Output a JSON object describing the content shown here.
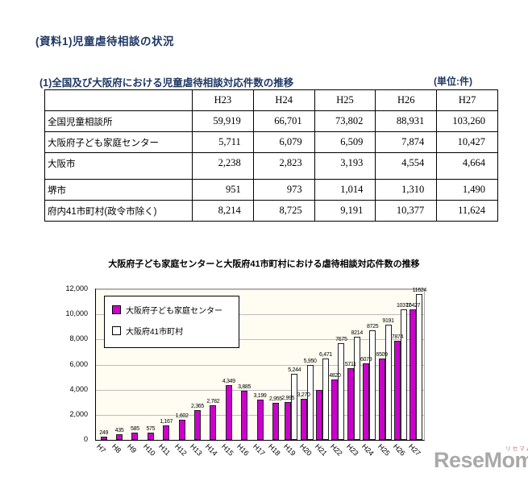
{
  "page": {
    "heading": "(資料1)児童虐待相談の状況",
    "subtitle": "(1)全国及び大阪府における児童虐待相談対応件数の推移",
    "unit_note": "(単位:件)"
  },
  "table": {
    "corner": "",
    "columns": [
      "H23",
      "H24",
      "H25",
      "H26",
      "H27"
    ],
    "rows": [
      {
        "label": "全国児童相談所",
        "values": [
          "59,919",
          "66,701",
          "73,802",
          "88,931",
          "103,260"
        ]
      },
      {
        "label": "大阪府子ども家庭センター",
        "values": [
          "5,711",
          "6,079",
          "6,509",
          "7,874",
          "10,427"
        ]
      },
      {
        "label": "大阪市",
        "values": [
          "2,238",
          "2,823",
          "3,193",
          "4,554",
          "4,664"
        ]
      },
      {
        "label": "堺市",
        "values": [
          "951",
          "973",
          "1,014",
          "1,310",
          "1,490"
        ]
      },
      {
        "label": "府内41市町村(政令市除く)",
        "values": [
          "8,214",
          "8,725",
          "9,191",
          "10,377",
          "11,624"
        ]
      }
    ]
  },
  "chart_data": {
    "type": "bar",
    "title": "大阪府子ども家庭センターと大阪府41市町村における虐待相談対応件数の推移",
    "categories": [
      "H7",
      "H8",
      "H9",
      "H10",
      "H11",
      "H12",
      "H13",
      "H14",
      "H15",
      "H16",
      "H17",
      "H18",
      "H19",
      "H20",
      "H21",
      "H22",
      "H23",
      "H24",
      "H25",
      "H26",
      "H27"
    ],
    "series": [
      {
        "name": "大阪府子ども家庭センター",
        "color": "#cc00cc",
        "values": [
          249,
          435,
          585,
          575,
          1167,
          1602,
          2365,
          2782,
          4349,
          3885,
          3199,
          2955,
          2995,
          3270,
          4000,
          4820,
          5711,
          6079,
          6509,
          7874,
          10427
        ],
        "labels": [
          "249",
          "435",
          "585",
          "575",
          "1,167",
          "1,602",
          "2,365",
          "2,782",
          "4,349",
          "3,885",
          "3,199",
          "2,955",
          "2,995",
          "3,270",
          "",
          "4820",
          "5711",
          "6079",
          "6509",
          "7874",
          "10427"
        ]
      },
      {
        "name": "大阪府41市町村",
        "color": "#ffffff",
        "values": [
          null,
          null,
          null,
          null,
          null,
          null,
          null,
          null,
          null,
          null,
          null,
          null,
          5244,
          5950,
          6471,
          7675,
          8214,
          8725,
          9191,
          10377,
          11624
        ],
        "labels": [
          "",
          "",
          "",
          "",
          "",
          "",
          "",
          "",
          "",
          "",
          "",
          "",
          "5,244",
          "5,950",
          "6,471",
          "7675",
          "8214",
          "8725",
          "9191",
          "10377",
          "11624"
        ]
      }
    ],
    "xlabel": "",
    "ylabel": "",
    "ylim": [
      0,
      12000
    ],
    "y_ticks": [
      "0",
      "2,000",
      "4,000",
      "6,000",
      "8,000",
      "10,000",
      "12,000"
    ],
    "grid": true,
    "legend_position": "upper-left"
  },
  "watermark": {
    "brand": "ReseMom",
    "kana": "リセマム"
  }
}
